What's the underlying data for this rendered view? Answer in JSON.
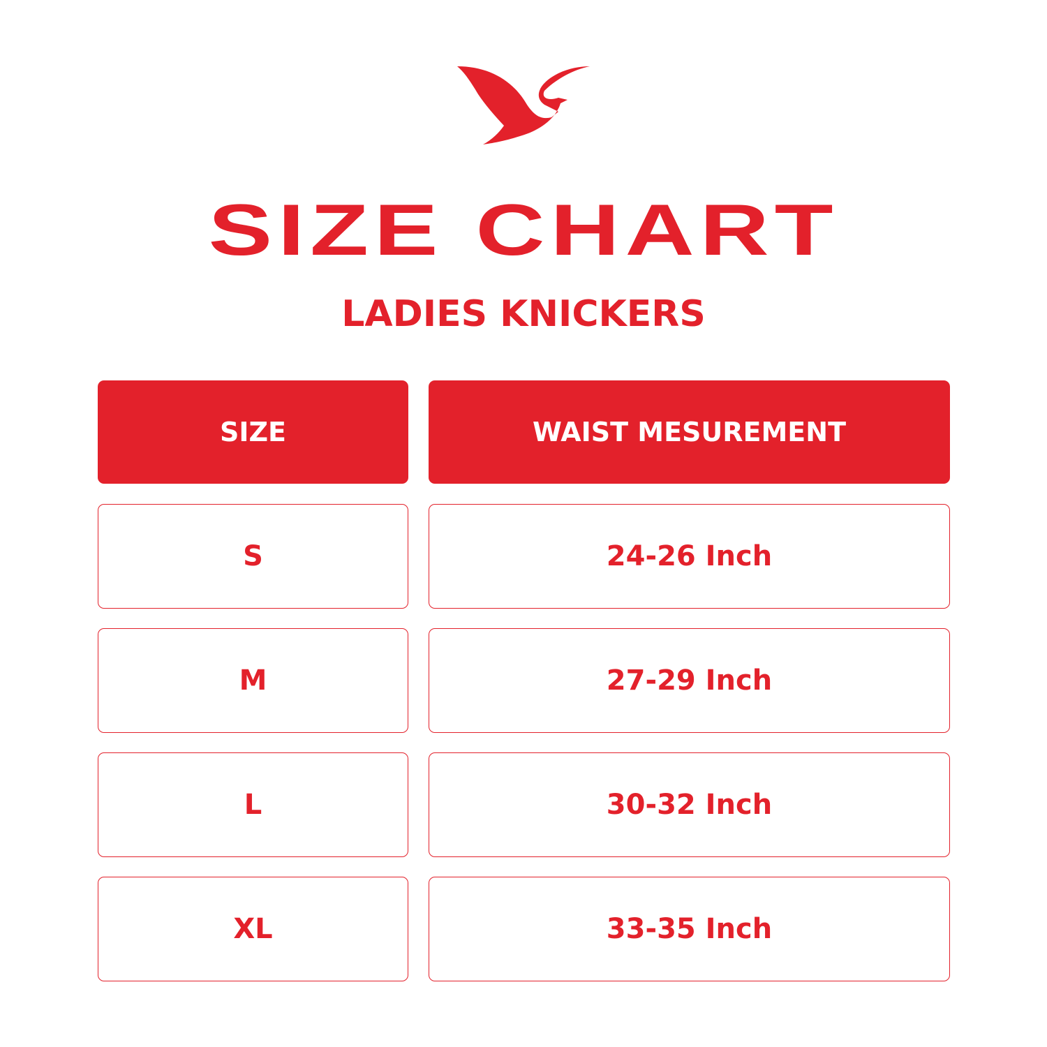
{
  "brand": {
    "logo_icon": "bird-logo",
    "color": "#e3212b"
  },
  "title": "SIZE CHART",
  "subtitle": "LADIES KNICKERS",
  "table": {
    "headers": [
      "SIZE",
      "WAIST MESUREMENT"
    ],
    "rows": [
      [
        "S",
        "24-26 Inch"
      ],
      [
        "M",
        "27-29 Inch"
      ],
      [
        "L",
        "30-32 Inch"
      ],
      [
        "XL",
        "33-35 Inch"
      ]
    ]
  }
}
